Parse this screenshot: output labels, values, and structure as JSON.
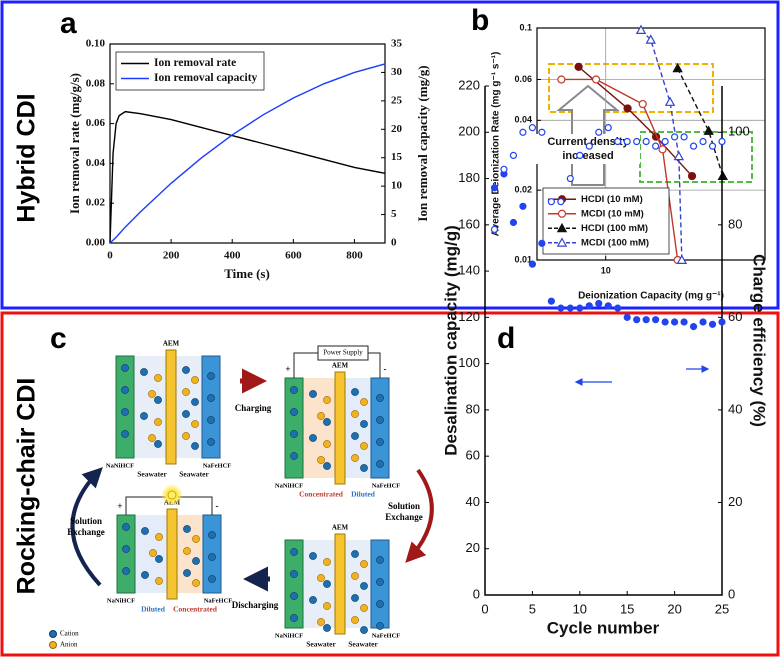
{
  "side_labels": [
    "Hybrid CDI",
    "Rocking-chair CDI"
  ],
  "panel_labels": [
    "a",
    "b",
    "c",
    "d"
  ],
  "chart_data": [
    {
      "type": "line",
      "xlabel": "Time (s)",
      "ylabel": "Ion removal rate (mg/g/s)",
      "y2label": "Ion removal capacity (mg/g)",
      "x": [
        0,
        10,
        20,
        30,
        50,
        100,
        200,
        300,
        400,
        500,
        600,
        700,
        800,
        900
      ],
      "series": [
        {
          "name": "Ion removal rate",
          "color": "#000000",
          "values": [
            0,
            0.045,
            0.06,
            0.064,
            0.066,
            0.065,
            0.062,
            0.058,
            0.054,
            0.05,
            0.046,
            0.042,
            0.038,
            0.035
          ]
        },
        {
          "name": "Ion removal capacity",
          "color": "#1a3cff",
          "axis": "y2",
          "values": [
            0,
            0.5,
            1,
            1.6,
            2.8,
            5.5,
            10.5,
            15,
            19,
            22.5,
            25.5,
            28,
            30,
            31.5
          ]
        }
      ],
      "xlim": [
        0,
        900
      ],
      "xticks": [
        0,
        200,
        400,
        600,
        800
      ],
      "ylim": [
        0,
        0.1
      ],
      "yticks": [
        {
          "value": 0,
          "label": "0.00"
        },
        {
          "value": 0.02,
          "label": "0.02"
        },
        {
          "value": 0.04,
          "label": "0.04"
        },
        {
          "value": 0.06,
          "label": "0.06"
        },
        {
          "value": 0.08,
          "label": "0.08"
        },
        {
          "value": 0.1,
          "label": "0.10"
        }
      ],
      "y2lim": [
        0,
        35
      ],
      "y2ticks": [
        0,
        5,
        10,
        15,
        20,
        25,
        30,
        35
      ],
      "legend": "upper left",
      "grid": false
    },
    {
      "type": "line",
      "xlabel": "Deionization Capacity (mg g⁻¹)",
      "ylabel": "Average Deionization Rate (mg g⁻¹ s⁻¹)",
      "annotations": [
        "Current density",
        "increased"
      ],
      "series": [
        {
          "name": "HCDI (10 mM)",
          "color": "#7a1010",
          "marker": "circle",
          "filled": true,
          "x": [
            7.9,
            12.1,
            15.5,
            21.2
          ],
          "values": [
            0.068,
            0.045,
            0.034,
            0.023
          ]
        },
        {
          "name": "MCDI (10 mM)",
          "color": "#c0392b",
          "marker": "circle",
          "filled": false,
          "x": [
            6.8,
            9.2,
            13.8,
            16.4,
            18.7
          ],
          "values": [
            0.06,
            0.06,
            0.047,
            0.03,
            0.01
          ]
        },
        {
          "name": "HCDI (100 mM)",
          "color": "#111111",
          "marker": "triangle",
          "filled": true,
          "dash": true,
          "x": [
            18.7,
            24.5,
            27.7
          ],
          "values": [
            0.067,
            0.036,
            0.023
          ]
        },
        {
          "name": "MCDI (100 mM)",
          "color": "#3344cc",
          "marker": "triangle",
          "filled": false,
          "dash": true,
          "x": [
            13.6,
            14.8,
            17.5,
            18.9,
            19.4
          ],
          "values": [
            0.098,
            0.089,
            0.048,
            0.028,
            0.01
          ]
        }
      ],
      "xscale": "log",
      "yscale": "log",
      "xlim": [
        5.5,
        40
      ],
      "xticks": [
        10
      ],
      "ylim": [
        0.01,
        0.1
      ],
      "yticks": [
        0.01,
        0.02,
        0.04,
        0.06,
        0.1
      ],
      "legend": "lower left",
      "grid": true
    },
    {
      "type": "scatter",
      "xlabel": "Cycle number",
      "ylabel": "Desalination capacity (mg/g)",
      "y2label": "Charge efficiency (%)",
      "x": [
        1,
        2,
        3,
        4,
        5,
        6,
        7,
        8,
        9,
        10,
        11,
        12,
        13,
        14,
        15,
        16,
        17,
        18,
        19,
        20,
        21,
        22,
        23,
        24,
        25
      ],
      "series": [
        {
          "color": "#2244ee",
          "marker": "circle",
          "filled": true,
          "values": [
            176,
            182,
            161,
            168,
            143,
            152,
            127,
            124,
            124,
            124,
            125,
            126,
            125,
            124,
            120,
            119,
            119,
            119,
            118,
            118,
            118,
            116,
            118,
            117,
            118
          ]
        },
        {
          "color": "#2244ee",
          "marker": "circle",
          "filled": false,
          "axis": "y2",
          "values": [
            79,
            92,
            95,
            100,
            101,
            100,
            85,
            85,
            90,
            95,
            97,
            100,
            101,
            98,
            98,
            98,
            98,
            97,
            98,
            99,
            99,
            97,
            98,
            97,
            98
          ]
        }
      ],
      "xlim": [
        0,
        25
      ],
      "xticks": [
        0,
        5,
        10,
        15,
        20,
        25
      ],
      "ylim": [
        0,
        220
      ],
      "yticks": [
        0,
        20,
        40,
        60,
        80,
        100,
        120,
        140,
        160,
        180,
        200,
        220
      ],
      "y2lim": [
        0,
        110
      ],
      "y2ticks": [
        0,
        20,
        40,
        60,
        80,
        100
      ],
      "grid": false
    }
  ],
  "diagram": {
    "cells": [
      {
        "membrane": "AEM",
        "left_electrode": "NaNiHCF",
        "right_electrode": "NaFeHCF",
        "left_solution": "Seawater",
        "right_solution": "Seawater"
      },
      {
        "membrane": "AEM",
        "left_electrode": "NaNiHCF",
        "right_electrode": "NaFeHCF",
        "left_solution": "Concentrated",
        "right_solution": "Diluted",
        "power": "Power Supply",
        "positive": "+",
        "negative": "-"
      },
      {
        "membrane": "AEM",
        "left_electrode": "NaNiHCF",
        "right_electrode": "NaFeHCF",
        "left_solution": "Seawater",
        "right_solution": "Seawater"
      },
      {
        "membrane": "AEM",
        "left_electrode": "NaNiHCF",
        "right_electrode": "NaFeHCF",
        "left_solution": "Diluted",
        "right_solution": "Concentrated",
        "positive": "+",
        "negative": "-"
      }
    ],
    "steps": {
      "charging": "Charging",
      "exchange_right": [
        "Solution",
        "Exchange"
      ],
      "discharging": "Discharging",
      "exchange_left": [
        "Solution",
        "Exchange"
      ]
    },
    "legend": [
      "Cation",
      "Anion"
    ]
  }
}
